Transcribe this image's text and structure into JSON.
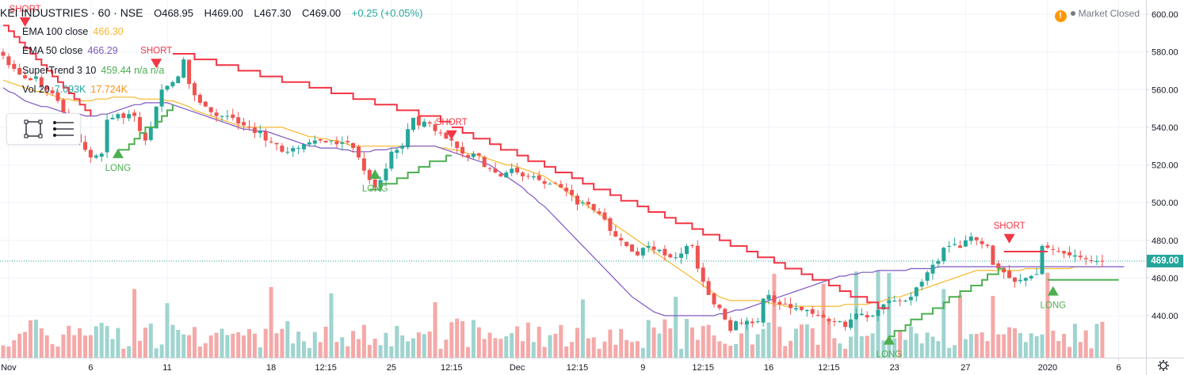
{
  "header": {
    "symbol": "KEI INDUSTRIES · 60 · NSE",
    "open": "O468.95",
    "high": "H469.00",
    "low": "L467.30",
    "close": "C469.00",
    "change": "+0.25 (+0.05%)"
  },
  "legend": {
    "ema100": {
      "label": "EMA 100 close",
      "value": "466.30"
    },
    "ema50": {
      "label": "EMA 50 close",
      "value": "466.29"
    },
    "supertrend": {
      "label": "SuperTrend 3 10",
      "value": "459.44 n/a n/a"
    },
    "vol": {
      "label": "Vol 20",
      "value1": "7.093K",
      "value2": "17.724K"
    }
  },
  "status": {
    "market": "Market Closed",
    "alert_icon": "exclamation-icon"
  },
  "last_price": "469.00",
  "colors": {
    "up": "#26a69a",
    "down": "#ef5350",
    "ema100": "#f5b82e",
    "ema50": "#7e57c2",
    "st_up": "#4caf50",
    "st_down": "#f23645",
    "vol_up": "#9fd4cf",
    "vol_down": "#f4a9a8",
    "grid": "#f0f3fa",
    "axis_text": "#131722"
  },
  "chart_data": {
    "type": "candlestick",
    "title": "KEI INDUSTRIES · 60 · NSE",
    "ylim": [
      420,
      605
    ],
    "y_ticks": [
      440,
      460,
      480,
      500,
      520,
      540,
      560,
      580,
      600
    ],
    "y_tick_labels": [
      "440.00",
      "460.00",
      "480.00",
      "500.00",
      "520.00",
      "540.00",
      "560.00",
      "580.00",
      "600.00"
    ],
    "x_ticks": [
      {
        "i": 1,
        "label": "Nov"
      },
      {
        "i": 16,
        "label": "6"
      },
      {
        "i": 30,
        "label": "11"
      },
      {
        "i": 49,
        "label": "18"
      },
      {
        "i": 59,
        "label": "12:15"
      },
      {
        "i": 71,
        "label": "25"
      },
      {
        "i": 82,
        "label": "12:15"
      },
      {
        "i": 94,
        "label": "Dec"
      },
      {
        "i": 105,
        "label": "12:15"
      },
      {
        "i": 117,
        "label": "9"
      },
      {
        "i": 128,
        "label": "12:15"
      },
      {
        "i": 140,
        "label": "16"
      },
      {
        "i": 151,
        "label": "12:15"
      },
      {
        "i": 163,
        "label": "23"
      },
      {
        "i": 176,
        "label": "27"
      },
      {
        "i": 191,
        "label": "2020"
      },
      {
        "i": 204,
        "label": "6"
      }
    ],
    "closes": [
      578,
      573,
      571,
      568,
      566,
      565,
      567,
      562,
      560,
      558,
      554,
      548,
      542,
      537,
      532,
      528,
      524,
      525,
      526,
      544,
      545,
      547,
      545,
      547,
      546,
      538,
      533,
      540,
      551,
      560,
      562,
      564,
      567,
      576,
      563,
      557,
      553,
      551,
      548,
      546,
      546,
      546,
      545,
      542,
      541,
      540,
      537,
      538,
      533,
      532,
      531,
      527,
      527,
      529,
      529,
      531,
      532,
      533,
      533,
      532,
      533,
      531,
      532,
      532,
      529,
      524,
      517,
      512,
      508,
      512,
      518,
      527,
      528,
      530,
      539,
      545,
      541,
      543,
      542,
      538,
      537,
      534,
      533,
      529,
      526,
      524,
      526,
      525,
      519,
      518,
      516,
      514,
      516,
      518,
      516,
      514,
      514,
      514,
      512,
      510,
      510,
      510,
      508,
      506,
      504,
      499,
      500,
      499,
      496,
      494,
      491,
      485,
      482,
      480,
      477,
      474,
      472,
      476,
      477,
      475,
      475,
      472,
      471,
      471,
      473,
      477,
      477,
      465,
      458,
      451,
      446,
      444,
      438,
      432,
      437,
      436,
      437,
      436,
      437,
      449,
      451,
      447,
      446,
      446,
      444,
      444,
      443,
      443,
      441,
      440,
      439,
      437,
      437,
      437,
      434,
      438,
      441,
      441,
      439,
      440,
      443,
      446,
      448,
      448,
      448,
      448,
      450,
      455,
      458,
      463,
      467,
      469,
      476,
      477,
      478,
      476,
      480,
      482,
      480,
      478,
      477,
      467,
      465,
      463,
      460,
      458,
      459,
      460,
      461,
      462,
      477,
      476,
      475,
      474,
      473,
      472,
      472,
      471,
      470,
      469,
      469,
      469
    ],
    "ema100": [
      565,
      564,
      563,
      562,
      561,
      560,
      559,
      559,
      558,
      557,
      556,
      555,
      555,
      554,
      554,
      554,
      554,
      555,
      555,
      555,
      556,
      556,
      556,
      556,
      556,
      555,
      555,
      555,
      555,
      555,
      554,
      554,
      553,
      552,
      551,
      549,
      548,
      547,
      546,
      545,
      544,
      543,
      542,
      541,
      540,
      540,
      540,
      540,
      540,
      540,
      540,
      540,
      539,
      538,
      537,
      536,
      535,
      535,
      534,
      534,
      533,
      533,
      532,
      531,
      530,
      530,
      530,
      530,
      530,
      530,
      530,
      530,
      530,
      530,
      530,
      530,
      530,
      530,
      530,
      530,
      529,
      529,
      528,
      528,
      527,
      526,
      526,
      525,
      524,
      523,
      522,
      521,
      520,
      520,
      519,
      518,
      517,
      516,
      515,
      514,
      512,
      510,
      508,
      506,
      504,
      502,
      500,
      498,
      496,
      494,
      492,
      490,
      488,
      486,
      484,
      482,
      480,
      478,
      476,
      474,
      472,
      470,
      468,
      466,
      464,
      462,
      460,
      458,
      456,
      454,
      452,
      450,
      449,
      448,
      448,
      448,
      448,
      448,
      448,
      447,
      447,
      446,
      446,
      445,
      445,
      445,
      445,
      445,
      445,
      445,
      445,
      445,
      445,
      445,
      446,
      446,
      446,
      446,
      446,
      447,
      447,
      448,
      449,
      450,
      450,
      451,
      452,
      453,
      454,
      455,
      456,
      457,
      458,
      459,
      460,
      461,
      462,
      463,
      464,
      464,
      464,
      464,
      464,
      464,
      464,
      464,
      464,
      465,
      465,
      465,
      465,
      465,
      465,
      465,
      465,
      465,
      466,
      466,
      466,
      466,
      466,
      466
    ],
    "ema50": [
      561,
      559,
      558,
      556,
      554,
      553,
      552,
      551,
      551,
      550,
      549,
      548,
      547,
      547,
      547,
      546,
      546,
      546,
      547,
      547,
      548,
      549,
      550,
      551,
      552,
      552,
      553,
      553,
      553,
      553,
      553,
      552,
      551,
      550,
      549,
      548,
      547,
      546,
      545,
      544,
      543,
      542,
      541,
      540,
      539,
      539,
      538,
      538,
      538,
      537,
      536,
      535,
      534,
      533,
      532,
      531,
      530,
      530,
      529,
      529,
      529,
      529,
      528,
      528,
      527,
      527,
      527,
      527,
      528,
      528,
      528,
      529,
      529,
      530,
      530,
      530,
      530,
      530,
      530,
      530,
      529,
      528,
      527,
      526,
      525,
      524,
      523,
      522,
      521,
      520,
      518,
      516,
      514,
      512,
      510,
      508,
      505,
      503,
      500,
      498,
      495,
      492,
      489,
      486,
      483,
      480,
      477,
      474,
      471,
      468,
      465,
      462,
      459,
      456,
      453,
      450,
      448,
      446,
      444,
      442,
      441,
      440,
      440,
      440,
      440,
      440,
      440,
      440,
      440,
      440,
      440,
      441,
      441,
      442,
      443,
      443,
      444,
      445,
      446,
      447,
      448,
      449,
      450,
      451,
      452,
      453,
      454,
      455,
      456,
      457,
      458,
      459,
      460,
      461,
      461,
      462,
      462,
      463,
      463,
      463,
      464,
      464,
      464,
      464,
      464,
      464,
      465,
      465,
      465,
      465,
      465,
      466,
      466,
      466,
      466,
      466,
      466,
      466,
      466,
      466,
      466,
      466,
      466,
      466,
      466,
      466,
      466,
      466,
      466,
      466,
      466,
      466,
      466,
      466,
      466,
      466,
      466,
      466,
      466,
      466,
      466,
      466,
      466,
      466,
      466,
      466
    ],
    "supertrend": [
      {
        "x": [
          0,
          16
        ],
        "y": [
          595,
          545
        ],
        "trend": "down"
      },
      {
        "x": [
          21,
          31
        ],
        "y": [
          527,
          551
        ],
        "trend": "up"
      },
      {
        "x": [
          31,
          82
        ],
        "y": [
          580,
          543
        ],
        "trend": "down"
      },
      {
        "x": [
          67,
          82
        ],
        "y": [
          506,
          526
        ],
        "trend": "up"
      },
      {
        "x": [
          82,
          162
        ],
        "y": [
          540,
          443
        ],
        "trend": "down"
      },
      {
        "x": [
          162,
          183
        ],
        "y": [
          430,
          466
        ],
        "trend": "up"
      },
      {
        "x": [
          183,
          191
        ],
        "y": [
          473,
          473
        ],
        "trend": "down"
      },
      {
        "x": [
          191,
          204
        ],
        "y": [
          460,
          460
        ],
        "trend": "up"
      }
    ],
    "signals": [
      {
        "i": 4,
        "type": "SHORT",
        "price": 595
      },
      {
        "i": 21,
        "type": "LONG",
        "price": 527
      },
      {
        "i": 28,
        "type": "SHORT",
        "price": 573
      },
      {
        "i": 68,
        "type": "LONG",
        "price": 516
      },
      {
        "i": 82,
        "type": "SHORT",
        "price": 535
      },
      {
        "i": 162,
        "type": "LONG",
        "price": 428
      },
      {
        "i": 184,
        "type": "SHORT",
        "price": 480
      },
      {
        "i": 192,
        "type": "LONG",
        "price": 454
      }
    ],
    "volume_max": 20
  }
}
